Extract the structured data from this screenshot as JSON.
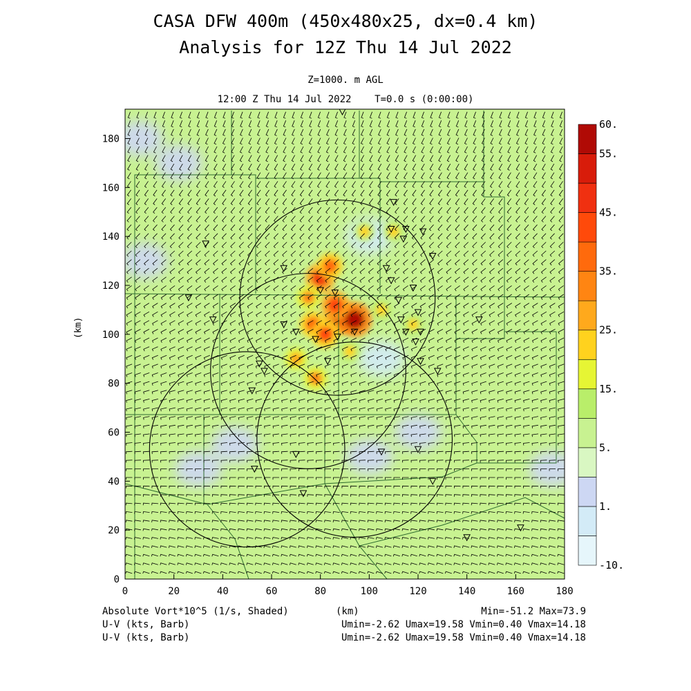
{
  "title_line1": "CASA DFW 400m (450x480x25, dx=0.4 km)",
  "title_line2": "Analysis for 12Z Thu 14 Jul 2022",
  "level": "Z=1000. m AGL",
  "time_line": "12:00 Z Thu 14 Jul 2022    T=0.0 s (0:00:00)",
  "colors": {
    "background": "#c8f291",
    "low_vort": "#cfd9f5",
    "grid_lines": "#2e6b2e",
    "barbs": "#000000"
  },
  "chart_data": {
    "type": "heatmap",
    "xlabel": "(km)",
    "ylabel": "(km)",
    "xlim": [
      0,
      180
    ],
    "ylim": [
      0,
      192
    ],
    "x_ticks": [
      0,
      20,
      40,
      60,
      80,
      100,
      120,
      140,
      160,
      180
    ],
    "y_ticks": [
      0,
      20,
      40,
      60,
      80,
      100,
      120,
      140,
      160,
      180
    ],
    "x_tick_labels": [
      "0",
      "20",
      "40",
      "60",
      "80",
      "100",
      "120",
      "140",
      "160",
      "180"
    ],
    "y_tick_labels": [
      "0",
      "20",
      "40",
      "60",
      "80",
      "100",
      "120",
      "140",
      "160",
      "180"
    ],
    "colorbar": {
      "bounds": [
        -10,
        0,
        1,
        2,
        5,
        10,
        15,
        20,
        25,
        30,
        35,
        40,
        45,
        50,
        55,
        60
      ],
      "colors": [
        "#e6f6fb",
        "#d3ebf7",
        "#cdd7f3",
        "#d9f7c2",
        "#c8f291",
        "#b9ee6a",
        "#e6f534",
        "#ffd21e",
        "#ffa91c",
        "#ff8512",
        "#ff6a0c",
        "#ff4a0a",
        "#f03010",
        "#d81c0a",
        "#b00a05"
      ],
      "labels": [
        {
          "value": -10,
          "text": "-10."
        },
        {
          "value": 1,
          "text": "1."
        },
        {
          "value": 5,
          "text": "5."
        },
        {
          "value": 15,
          "text": "15."
        },
        {
          "value": 25,
          "text": "25."
        },
        {
          "value": 35,
          "text": "35."
        },
        {
          "value": 45,
          "text": "45."
        },
        {
          "value": 55,
          "text": "55."
        },
        {
          "value": 60,
          "text": "60."
        }
      ]
    },
    "radar_rings": [
      {
        "x": 50,
        "y": 53,
        "r": 40
      },
      {
        "x": 87,
        "y": 115,
        "r": 40
      },
      {
        "x": 75,
        "y": 85,
        "r": 40
      },
      {
        "x": 94,
        "y": 57,
        "r": 40
      }
    ],
    "vorticity_cells": [
      {
        "x": 80,
        "y": 123,
        "v": 45
      },
      {
        "x": 89,
        "y": 107,
        "v": 55
      },
      {
        "x": 94,
        "y": 106,
        "v": 58
      },
      {
        "x": 86,
        "y": 112,
        "v": 42
      },
      {
        "x": 84,
        "y": 128,
        "v": 35
      },
      {
        "x": 77,
        "y": 104,
        "v": 38
      },
      {
        "x": 82,
        "y": 100,
        "v": 40
      },
      {
        "x": 75,
        "y": 115,
        "v": 30
      },
      {
        "x": 70,
        "y": 90,
        "v": 26
      },
      {
        "x": 78,
        "y": 82,
        "v": 30
      },
      {
        "x": 105,
        "y": 110,
        "v": 22
      },
      {
        "x": 92,
        "y": 93,
        "v": 22
      },
      {
        "x": 110,
        "y": 142,
        "v": 20
      },
      {
        "x": 98,
        "y": 142,
        "v": 20
      },
      {
        "x": 118,
        "y": 104,
        "v": 20
      }
    ],
    "low_vort_regions": [
      {
        "x": 6,
        "y": 180,
        "v": 1
      },
      {
        "x": 22,
        "y": 170,
        "v": 1
      },
      {
        "x": 8,
        "y": 130,
        "v": 1
      },
      {
        "x": 45,
        "y": 55,
        "v": 1
      },
      {
        "x": 30,
        "y": 45,
        "v": 1
      },
      {
        "x": 100,
        "y": 50,
        "v": 1
      },
      {
        "x": 120,
        "y": 60,
        "v": 1
      },
      {
        "x": 175,
        "y": 45,
        "v": 1
      },
      {
        "x": 100,
        "y": 140,
        "v": 0
      },
      {
        "x": 105,
        "y": 90,
        "v": 0
      }
    ],
    "stations": [
      [
        89,
        191
      ],
      [
        33,
        137
      ],
      [
        26,
        115
      ],
      [
        36,
        106
      ],
      [
        65,
        127
      ],
      [
        65,
        104
      ],
      [
        70,
        101
      ],
      [
        110,
        154
      ],
      [
        109,
        143
      ],
      [
        115,
        143
      ],
      [
        122,
        142
      ],
      [
        114,
        139
      ],
      [
        126,
        132
      ],
      [
        107,
        127
      ],
      [
        109,
        122
      ],
      [
        112,
        114
      ],
      [
        118,
        119
      ],
      [
        120,
        109
      ],
      [
        121,
        101
      ],
      [
        113,
        106
      ],
      [
        115,
        101
      ],
      [
        119,
        97
      ],
      [
        121,
        89
      ],
      [
        128,
        85
      ],
      [
        145,
        106
      ],
      [
        78,
        98
      ],
      [
        87,
        99
      ],
      [
        86,
        117
      ],
      [
        80,
        118
      ],
      [
        94,
        101
      ],
      [
        83,
        89
      ],
      [
        55,
        88
      ],
      [
        57,
        85
      ],
      [
        52,
        77
      ],
      [
        70,
        51
      ],
      [
        53,
        45
      ],
      [
        73,
        35
      ],
      [
        105,
        52
      ],
      [
        120,
        53
      ],
      [
        126,
        40
      ],
      [
        140,
        17
      ],
      [
        162,
        21
      ]
    ],
    "footer": {
      "left": [
        "Absolute Vort*10^5 (1/s, Shaded)",
        "U-V (kts, Barb)",
        "U-V (kts, Barb)"
      ],
      "axis_label": "(km)",
      "right": [
        "Min=-51.2 Max=73.9",
        "Umin=-2.62 Umax=19.58 Vmin=0.40 Vmax=14.18",
        "Umin=-2.62 Umax=19.58 Vmin=0.40 Vmax=14.18"
      ]
    }
  }
}
